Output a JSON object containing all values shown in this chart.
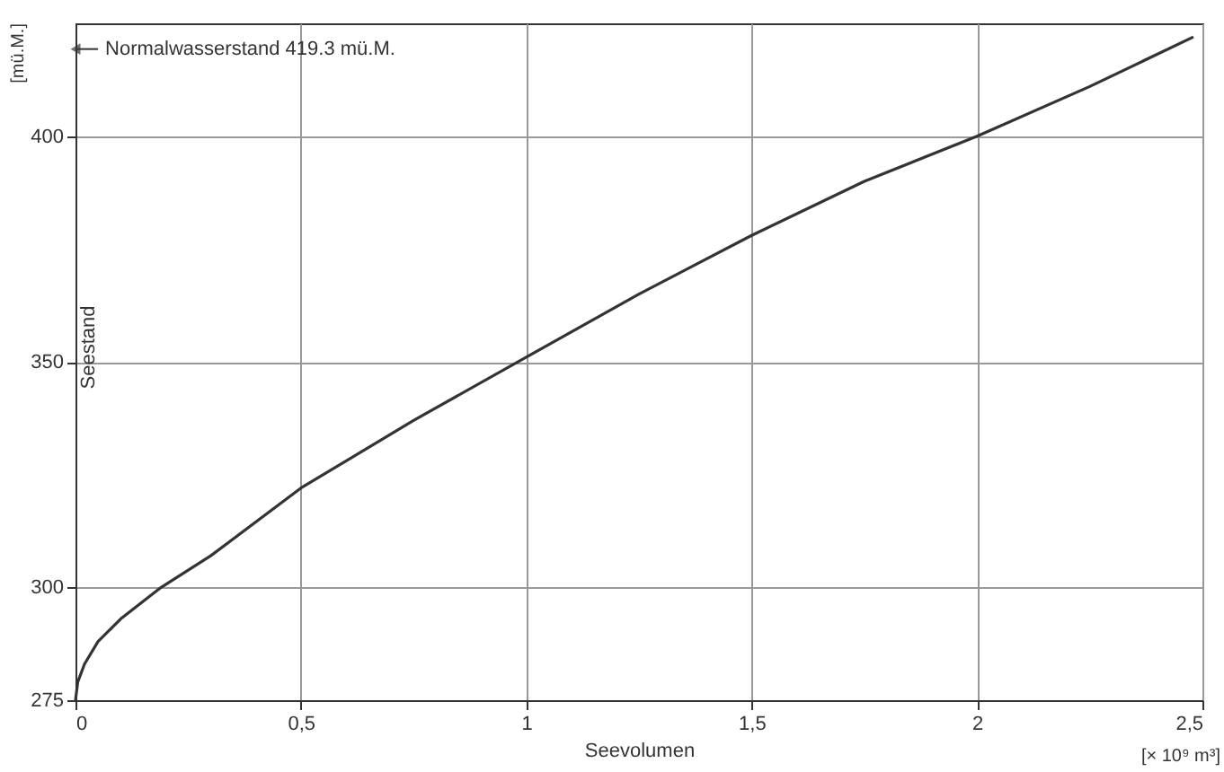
{
  "chart_data": {
    "type": "line",
    "xlabel": "Seevolumen",
    "ylabel": "Seestand",
    "x": [
      0,
      0.005,
      0.02,
      0.05,
      0.1,
      0.19,
      0.3,
      0.5,
      0.75,
      1.0,
      1.25,
      1.5,
      1.75,
      2.0,
      2.25,
      2.48
    ],
    "series": [
      {
        "color": "#333333",
        "values": [
          275,
          279,
          283,
          288,
          293,
          300,
          307,
          322,
          337,
          351,
          365,
          378,
          390,
          400,
          411,
          422
        ]
      }
    ],
    "xlim": [
      0,
      2.5
    ],
    "ylim": [
      275,
      425
    ],
    "xticks": [
      0,
      {
        "value": 0.5,
        "label": "0,5"
      },
      1,
      {
        "value": 1.5,
        "label": "1,5"
      },
      2,
      {
        "value": 2.5,
        "label": "2,5"
      }
    ],
    "yticks": [
      275,
      300,
      350,
      400
    ],
    "grid": true,
    "marker": "none",
    "line_style": "solid",
    "annotations": [
      {
        "text": "Normalwasserstand 419.3 mü.M.",
        "x": 0,
        "y": 419.3
      },
      "[mü.M.]",
      "[× 10⁹ m³]"
    ]
  }
}
